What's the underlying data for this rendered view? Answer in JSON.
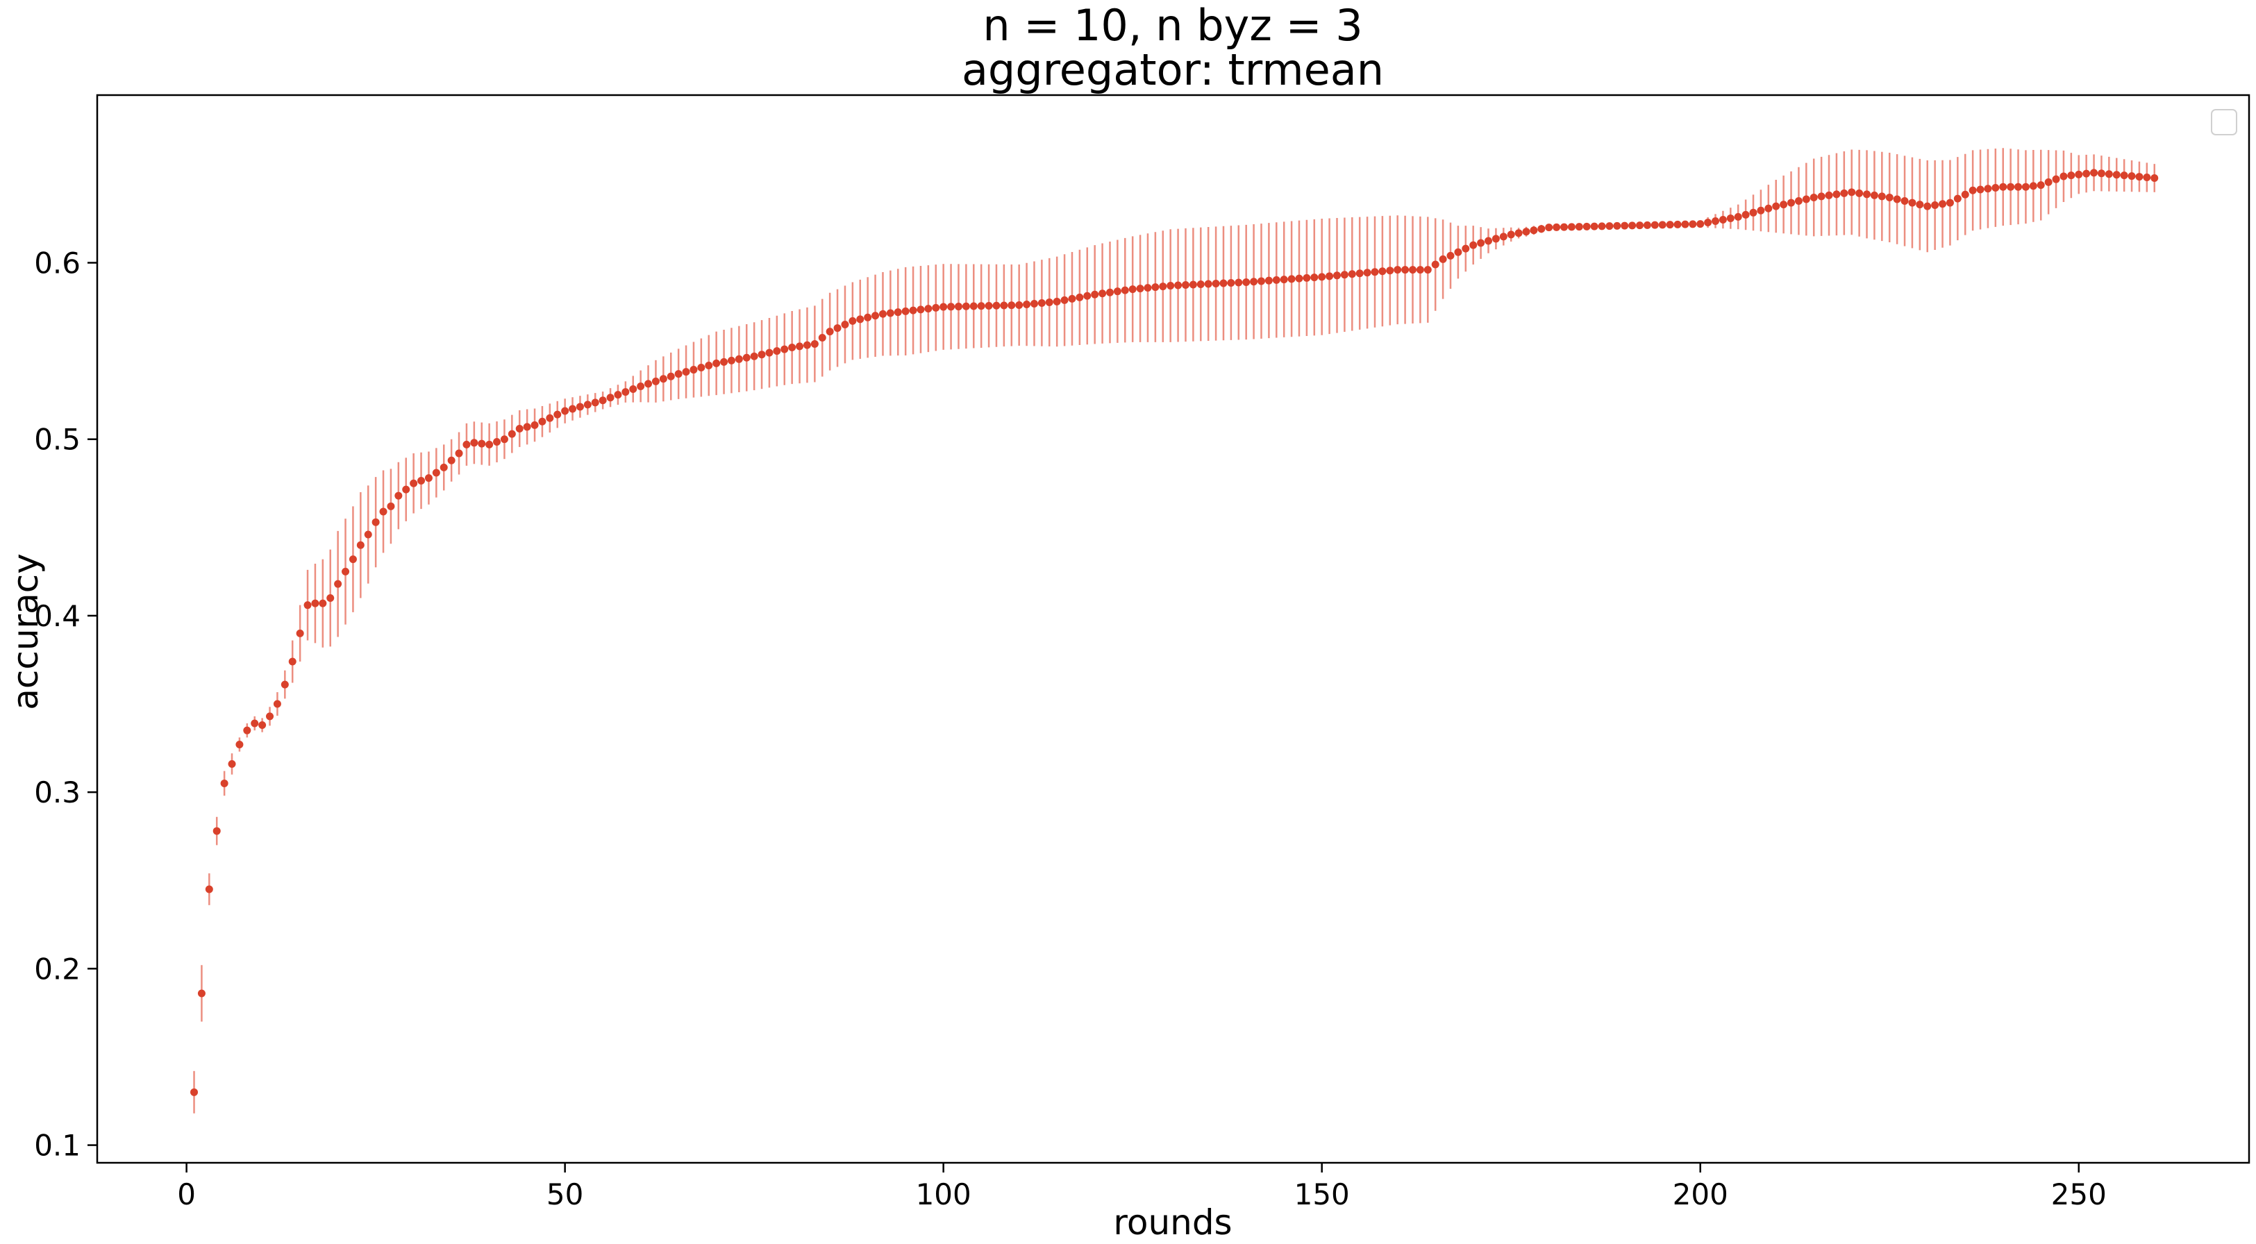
{
  "chart_data": {
    "type": "scatter",
    "title": "n = 10, n byz = 3",
    "subtitle": "aggregator: trmean",
    "xlabel": "rounds",
    "ylabel": "accuracy",
    "xlim": [
      -11.8,
      272.5
    ],
    "ylim": [
      0.09,
      0.695
    ],
    "xticks": [
      0,
      50,
      100,
      150,
      200,
      250
    ],
    "yticks": [
      0.1,
      0.2,
      0.3,
      0.4,
      0.5,
      0.6
    ],
    "ytick_labels": [
      "0.1",
      "0.2",
      "0.3",
      "0.4",
      "0.5",
      "0.6"
    ],
    "grid": false,
    "legend": "top-right",
    "colors": {
      "marker": "#d9412b",
      "errorbar": "#ec8e80"
    },
    "x_range": [
      1,
      260
    ],
    "mean_keypoints": [
      [
        1,
        0.13
      ],
      [
        2,
        0.186
      ],
      [
        3,
        0.245
      ],
      [
        4,
        0.278
      ],
      [
        5,
        0.305
      ],
      [
        6,
        0.316
      ],
      [
        7,
        0.327
      ],
      [
        8,
        0.335
      ],
      [
        9,
        0.339
      ],
      [
        10,
        0.338
      ],
      [
        11,
        0.343
      ],
      [
        12,
        0.35
      ],
      [
        13,
        0.361
      ],
      [
        14,
        0.374
      ],
      [
        15,
        0.39
      ],
      [
        16,
        0.406
      ],
      [
        17,
        0.407
      ],
      [
        18,
        0.407
      ],
      [
        19,
        0.41
      ],
      [
        20,
        0.418
      ],
      [
        21,
        0.425
      ],
      [
        22,
        0.432
      ],
      [
        23,
        0.44
      ],
      [
        24,
        0.446
      ],
      [
        25,
        0.453
      ],
      [
        26,
        0.459
      ],
      [
        27,
        0.462
      ],
      [
        28,
        0.468
      ],
      [
        30,
        0.475
      ],
      [
        32,
        0.478
      ],
      [
        34,
        0.484
      ],
      [
        36,
        0.492
      ],
      [
        37,
        0.497
      ],
      [
        38,
        0.498
      ],
      [
        40,
        0.497
      ],
      [
        42,
        0.5
      ],
      [
        44,
        0.506
      ],
      [
        46,
        0.508
      ],
      [
        50,
        0.516
      ],
      [
        55,
        0.522
      ],
      [
        60,
        0.53
      ],
      [
        65,
        0.537
      ],
      [
        70,
        0.543
      ],
      [
        75,
        0.547
      ],
      [
        80,
        0.552
      ],
      [
        83,
        0.554
      ],
      [
        85,
        0.561
      ],
      [
        88,
        0.567
      ],
      [
        92,
        0.571
      ],
      [
        96,
        0.573
      ],
      [
        100,
        0.575
      ],
      [
        110,
        0.576
      ],
      [
        115,
        0.578
      ],
      [
        120,
        0.582
      ],
      [
        125,
        0.585
      ],
      [
        130,
        0.587
      ],
      [
        140,
        0.589
      ],
      [
        150,
        0.592
      ],
      [
        155,
        0.594
      ],
      [
        160,
        0.596
      ],
      [
        164,
        0.596
      ],
      [
        166,
        0.602
      ],
      [
        170,
        0.61
      ],
      [
        175,
        0.616
      ],
      [
        180,
        0.62
      ],
      [
        200,
        0.622
      ],
      [
        205,
        0.626
      ],
      [
        210,
        0.632
      ],
      [
        215,
        0.637
      ],
      [
        220,
        0.64
      ],
      [
        225,
        0.637
      ],
      [
        230,
        0.632
      ],
      [
        233,
        0.634
      ],
      [
        236,
        0.641
      ],
      [
        240,
        0.643
      ],
      [
        243,
        0.643
      ],
      [
        245,
        0.644
      ],
      [
        248,
        0.649
      ],
      [
        252,
        0.651
      ],
      [
        260,
        0.648
      ]
    ],
    "error_keypoints": [
      [
        1,
        0.012
      ],
      [
        2,
        0.016
      ],
      [
        3,
        0.009
      ],
      [
        4,
        0.008
      ],
      [
        5,
        0.007
      ],
      [
        6,
        0.006
      ],
      [
        7,
        0.004
      ],
      [
        10,
        0.004
      ],
      [
        13,
        0.008
      ],
      [
        15,
        0.016
      ],
      [
        16,
        0.02
      ],
      [
        18,
        0.025
      ],
      [
        20,
        0.03
      ],
      [
        23,
        0.03
      ],
      [
        28,
        0.019
      ],
      [
        35,
        0.012
      ],
      [
        40,
        0.012
      ],
      [
        45,
        0.01
      ],
      [
        50,
        0.007
      ],
      [
        55,
        0.005
      ],
      [
        58,
        0.006
      ],
      [
        62,
        0.012
      ],
      [
        70,
        0.018
      ],
      [
        78,
        0.02
      ],
      [
        84,
        0.022
      ],
      [
        88,
        0.022
      ],
      [
        95,
        0.025
      ],
      [
        110,
        0.023
      ],
      [
        120,
        0.028
      ],
      [
        130,
        0.032
      ],
      [
        150,
        0.033
      ],
      [
        164,
        0.03
      ],
      [
        168,
        0.015
      ],
      [
        172,
        0.007
      ],
      [
        176,
        0.003
      ],
      [
        180,
        0.002
      ],
      [
        200,
        0.002
      ],
      [
        205,
        0.007
      ],
      [
        210,
        0.015
      ],
      [
        215,
        0.022
      ],
      [
        222,
        0.025
      ],
      [
        230,
        0.026
      ],
      [
        235,
        0.023
      ],
      [
        240,
        0.022
      ],
      [
        245,
        0.02
      ],
      [
        250,
        0.011
      ],
      [
        260,
        0.008
      ]
    ]
  }
}
